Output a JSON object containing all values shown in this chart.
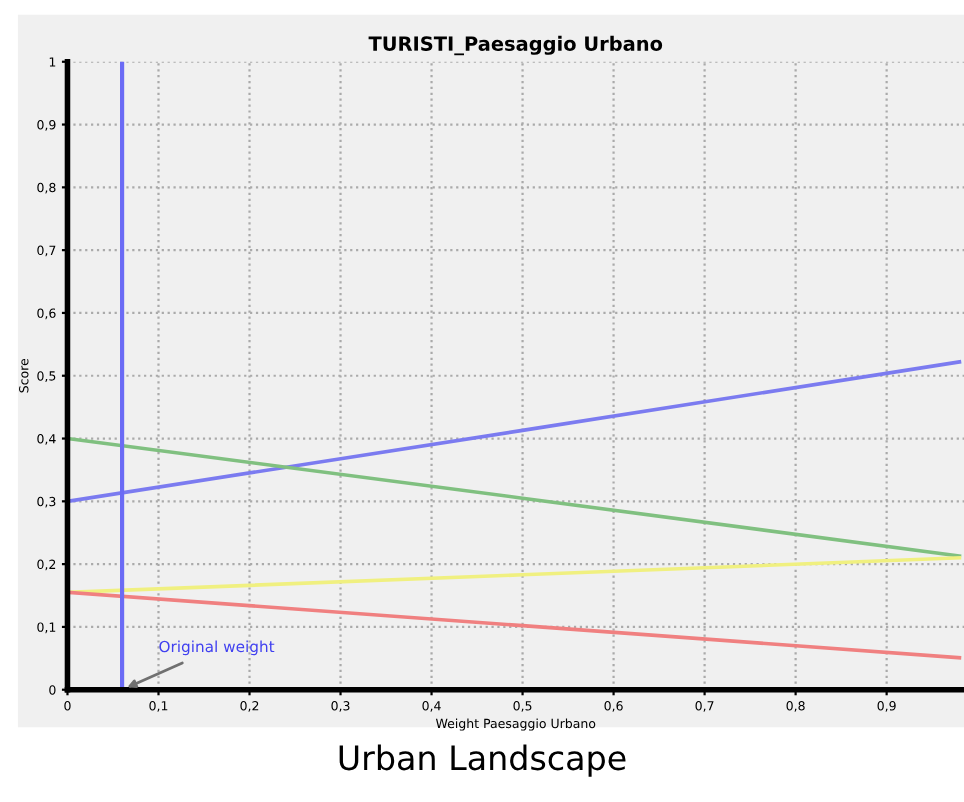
{
  "chart_data": {
    "type": "line",
    "title": "TURISTI_Paesaggio Urbano",
    "xlabel": "Weight Paesaggio Urbano",
    "ylabel": "Score",
    "series": [
      {
        "color": "#7b7bf0",
        "x": [
          0,
          0.5,
          0.98
        ],
        "values": [
          0.3,
          0.413,
          0.522
        ]
      },
      {
        "color": "#80c080",
        "x": [
          0,
          0.5,
          0.98
        ],
        "values": [
          0.4,
          0.305,
          0.213
        ]
      },
      {
        "color": "#f0f080",
        "x": [
          0,
          0.5,
          0.98
        ],
        "values": [
          0.155,
          0.183,
          0.21
        ]
      },
      {
        "color": "#f08080",
        "x": [
          0,
          0.5,
          0.98
        ],
        "values": [
          0.155,
          0.102,
          0.051
        ]
      }
    ],
    "xlim": [
      0,
      0.985
    ],
    "ylim": [
      0,
      1
    ],
    "xticks": [
      {
        "value": 0,
        "label": "0"
      },
      {
        "value": 0.1,
        "label": "0,1"
      },
      {
        "value": 0.2,
        "label": "0,2"
      },
      {
        "value": 0.3,
        "label": "0,3"
      },
      {
        "value": 0.4,
        "label": "0,4"
      },
      {
        "value": 0.5,
        "label": "0,5"
      },
      {
        "value": 0.6,
        "label": "0,6"
      },
      {
        "value": 0.7,
        "label": "0,7"
      },
      {
        "value": 0.8,
        "label": "0,8"
      },
      {
        "value": 0.9,
        "label": "0,9"
      }
    ],
    "yticks": [
      {
        "value": 0,
        "label": "0"
      },
      {
        "value": 0.1,
        "label": "0,1"
      },
      {
        "value": 0.2,
        "label": "0,2"
      },
      {
        "value": 0.3,
        "label": "0,3"
      },
      {
        "value": 0.4,
        "label": "0,4"
      },
      {
        "value": 0.5,
        "label": "0,5"
      },
      {
        "value": 0.6,
        "label": "0,6"
      },
      {
        "value": 0.7,
        "label": "0,7"
      },
      {
        "value": 0.8,
        "label": "0,8"
      },
      {
        "value": 0.9,
        "label": "0,9"
      },
      {
        "value": 1,
        "label": "1"
      }
    ],
    "ref_lines": [
      {
        "axis": "x",
        "value": 0.06,
        "color": "#6b6bf5"
      }
    ],
    "annotations": [
      {
        "text": "Original weight",
        "x": 0.06,
        "y": 0
      },
      "Urban Landscape"
    ],
    "grid": true,
    "legend": false,
    "marker": "none",
    "line_style": "solid"
  }
}
